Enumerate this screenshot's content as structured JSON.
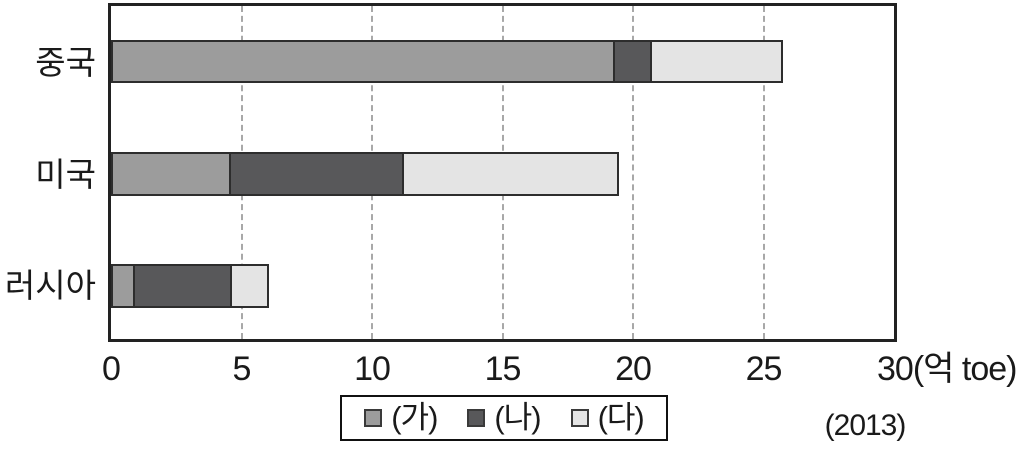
{
  "chart_data": {
    "type": "bar",
    "variant": "horizontal-stacked",
    "title": "",
    "categories": [
      "중국",
      "미국",
      "러시아"
    ],
    "series": [
      {
        "name": "(가)",
        "color": "#9c9c9c",
        "values": [
          19.3,
          4.6,
          0.9
        ]
      },
      {
        "name": "(나)",
        "color": "#58585a",
        "values": [
          1.5,
          6.7,
          3.8
        ]
      },
      {
        "name": "(다)",
        "color": "#e4e4e4",
        "values": [
          5.1,
          8.3,
          1.5
        ]
      }
    ],
    "totals": [
      25.9,
      19.6,
      6.2
    ],
    "xlim": [
      0,
      30
    ],
    "xticks": [
      0,
      5,
      10,
      15,
      20,
      25
    ],
    "x_axis_end_label": "30(억 toe)",
    "unit": "억 toe",
    "year_label": "(2013)",
    "grid": "dashed-vertical",
    "legend_position": "bottom-center",
    "colors": {
      "background": "#ffffff",
      "axis_border": "#222222",
      "segment_border": "#2d2d2d",
      "gridline": "#a8a8a8",
      "text": "#1a1a1a"
    }
  }
}
